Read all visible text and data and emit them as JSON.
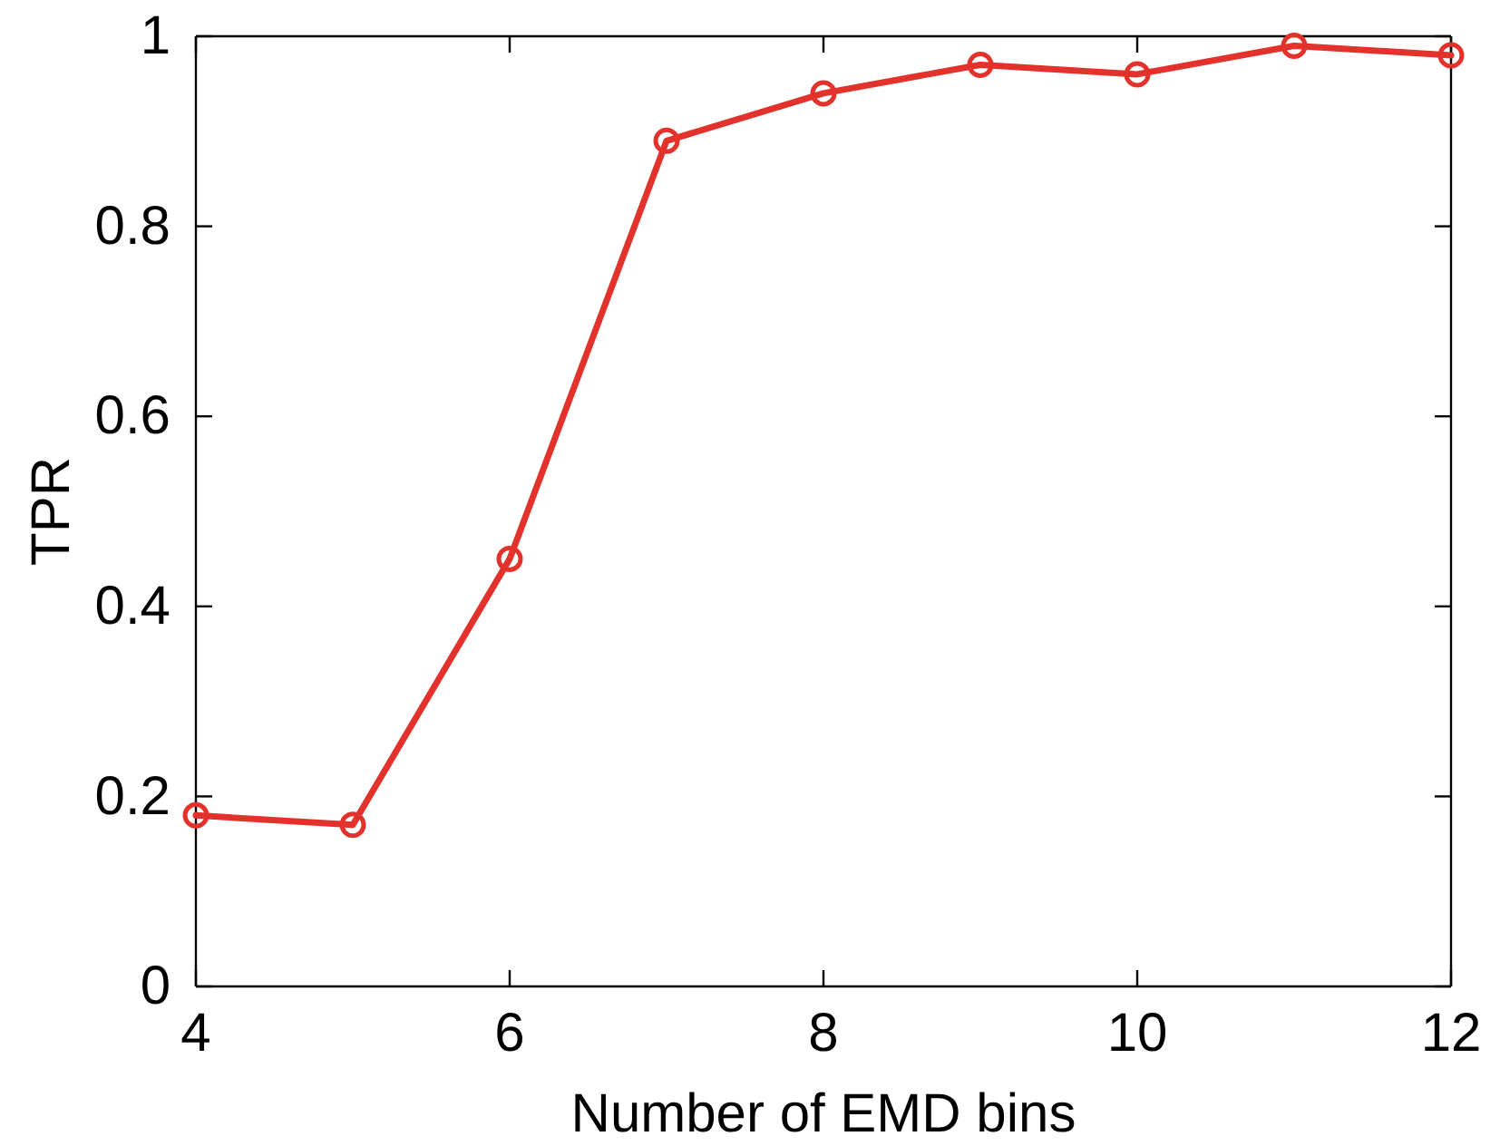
{
  "chart_data": {
    "type": "line",
    "xlabel": "Number of EMD bins",
    "ylabel": "TPR",
    "x": [
      4,
      5,
      6,
      7,
      8,
      9,
      10,
      11,
      12
    ],
    "series": [
      {
        "color": "#e3312b",
        "values": [
          0.18,
          0.17,
          0.45,
          0.89,
          0.94,
          0.97,
          0.96,
          0.99,
          0.98
        ]
      }
    ],
    "xlim": [
      4,
      12
    ],
    "xticks": [
      4,
      6,
      8,
      10,
      12
    ],
    "ylim": [
      0,
      1
    ],
    "yticks": [
      0,
      0.2,
      0.4,
      0.6,
      0.8,
      1
    ],
    "marker": "circle",
    "line_style": "solid"
  }
}
